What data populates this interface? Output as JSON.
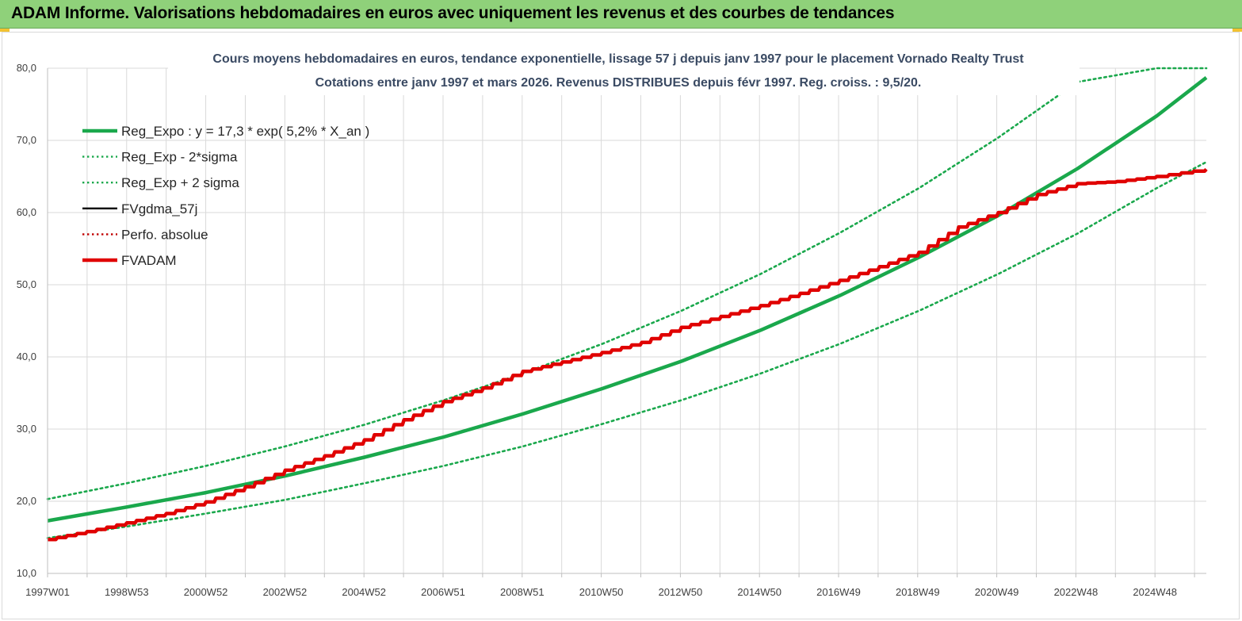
{
  "header": {
    "title": "ADAM Informe. Valorisations hebdomadaires en euros avec uniquement les revenus et des courbes de tendances"
  },
  "colors": {
    "banner": "#8fd17a",
    "reg_expo": "#1aa84c",
    "sigma_bands": "#1aa84c",
    "fvgdma": "#000000",
    "perfo": "#c00000",
    "fvadam": "#e00000",
    "grid": "#d9d9d9"
  },
  "chart_data": {
    "type": "line",
    "title_lines": [
      "Cours moyens hebdomadaires en euros, tendance exponentielle, lissage 57 j depuis janv 1997 pour le placement Vornado Realty Trust",
      "Cotations entre janv 1997 et mars 2026. Revenus DISTRIBUES depuis févr 1997. Reg. croiss. : 9,5/20."
    ],
    "x_tick_labels": [
      "1997W01",
      "1998W53",
      "2000W52",
      "2002W52",
      "2004W52",
      "2006W51",
      "2008W51",
      "2010W50",
      "2012W50",
      "2014W50",
      "2016W49",
      "2018W49",
      "2020W49",
      "2022W48",
      "2024W48"
    ],
    "x_range": [
      1997.0,
      2026.25
    ],
    "y_ticks": [
      "10,0",
      "20,0",
      "30,0",
      "40,0",
      "50,0",
      "60,0",
      "70,0",
      "80,0"
    ],
    "ylim": [
      10,
      80
    ],
    "legend_position": "top-left",
    "grid": true,
    "series": [
      {
        "name": "Reg_Expo : y = 17,3 * exp( 5,2% *  X_an )",
        "style": "solid-thick",
        "color": "#1aa84c",
        "x": [
          1997,
          1999,
          2001,
          2003,
          2005,
          2007,
          2009,
          2011,
          2013,
          2015,
          2017,
          2019,
          2021,
          2023,
          2025,
          2026.25
        ],
        "values": [
          17.3,
          19.2,
          21.2,
          23.5,
          26.1,
          28.9,
          32.1,
          35.6,
          39.4,
          43.7,
          48.5,
          53.8,
          59.6,
          66.1,
          73.4,
          78.7
        ]
      },
      {
        "name": "Reg_Exp - 2*sigma",
        "style": "dotted",
        "color": "#1aa84c",
        "x": [
          1997,
          1999,
          2001,
          2003,
          2005,
          2007,
          2009,
          2011,
          2013,
          2015,
          2017,
          2019,
          2021,
          2023,
          2025,
          2026.25
        ],
        "values": [
          14.9,
          16.5,
          18.3,
          20.2,
          22.5,
          24.9,
          27.6,
          30.7,
          34.0,
          37.7,
          41.8,
          46.4,
          51.5,
          57.1,
          63.4,
          67.0
        ]
      },
      {
        "name": "Reg_Exp + 2 sigma",
        "style": "dotted",
        "color": "#1aa84c",
        "x": [
          1997,
          1999,
          2001,
          2003,
          2005,
          2007,
          2009,
          2011,
          2013,
          2015,
          2017,
          2019,
          2021,
          2023,
          2025,
          2026.25
        ],
        "values": [
          20.3,
          22.5,
          24.9,
          27.6,
          30.6,
          34.0,
          37.7,
          41.8,
          46.4,
          51.5,
          57.2,
          63.4,
          70.4,
          78.1,
          80.0,
          80.0
        ]
      },
      {
        "name": "FVgdma_57j",
        "style": "solid",
        "color": "#000000",
        "x": [
          1997,
          1998,
          1999,
          2000,
          2001,
          2002,
          2003,
          2004,
          2005,
          2006,
          2007,
          2008,
          2009,
          2010,
          2011,
          2012,
          2013,
          2014,
          2015,
          2016,
          2017,
          2018,
          2019,
          2020,
          2021,
          2022,
          2023,
          2024,
          2025,
          2026.25
        ],
        "values": [
          14.7,
          15.8,
          17.0,
          18.3,
          19.9,
          22.0,
          24.3,
          26.3,
          28.5,
          31.3,
          33.8,
          35.7,
          38.0,
          39.3,
          40.6,
          42.0,
          44.1,
          45.6,
          47.1,
          48.8,
          50.6,
          52.5,
          54.5,
          58.0,
          60.0,
          62.5,
          64.0,
          64.3,
          65.0,
          66.0
        ]
      },
      {
        "name": "Perfo. absolue",
        "style": "dotted",
        "color": "#c00000",
        "x": [],
        "values": []
      },
      {
        "name": "FVADAM",
        "style": "solid-thick",
        "color": "#e00000",
        "x": [
          1997,
          1998,
          1999,
          2000,
          2001,
          2002,
          2003,
          2004,
          2005,
          2006,
          2007,
          2008,
          2009,
          2010,
          2011,
          2012,
          2013,
          2014,
          2015,
          2016,
          2017,
          2018,
          2019,
          2020,
          2021,
          2022,
          2023,
          2024,
          2025,
          2026.25
        ],
        "values": [
          14.7,
          15.8,
          17.0,
          18.3,
          19.9,
          22.0,
          24.3,
          26.3,
          28.5,
          31.3,
          33.8,
          35.7,
          38.0,
          39.3,
          40.6,
          42.0,
          44.1,
          45.6,
          47.1,
          48.8,
          50.6,
          52.5,
          54.5,
          58.0,
          60.0,
          62.5,
          64.0,
          64.3,
          65.0,
          66.0
        ]
      }
    ]
  }
}
